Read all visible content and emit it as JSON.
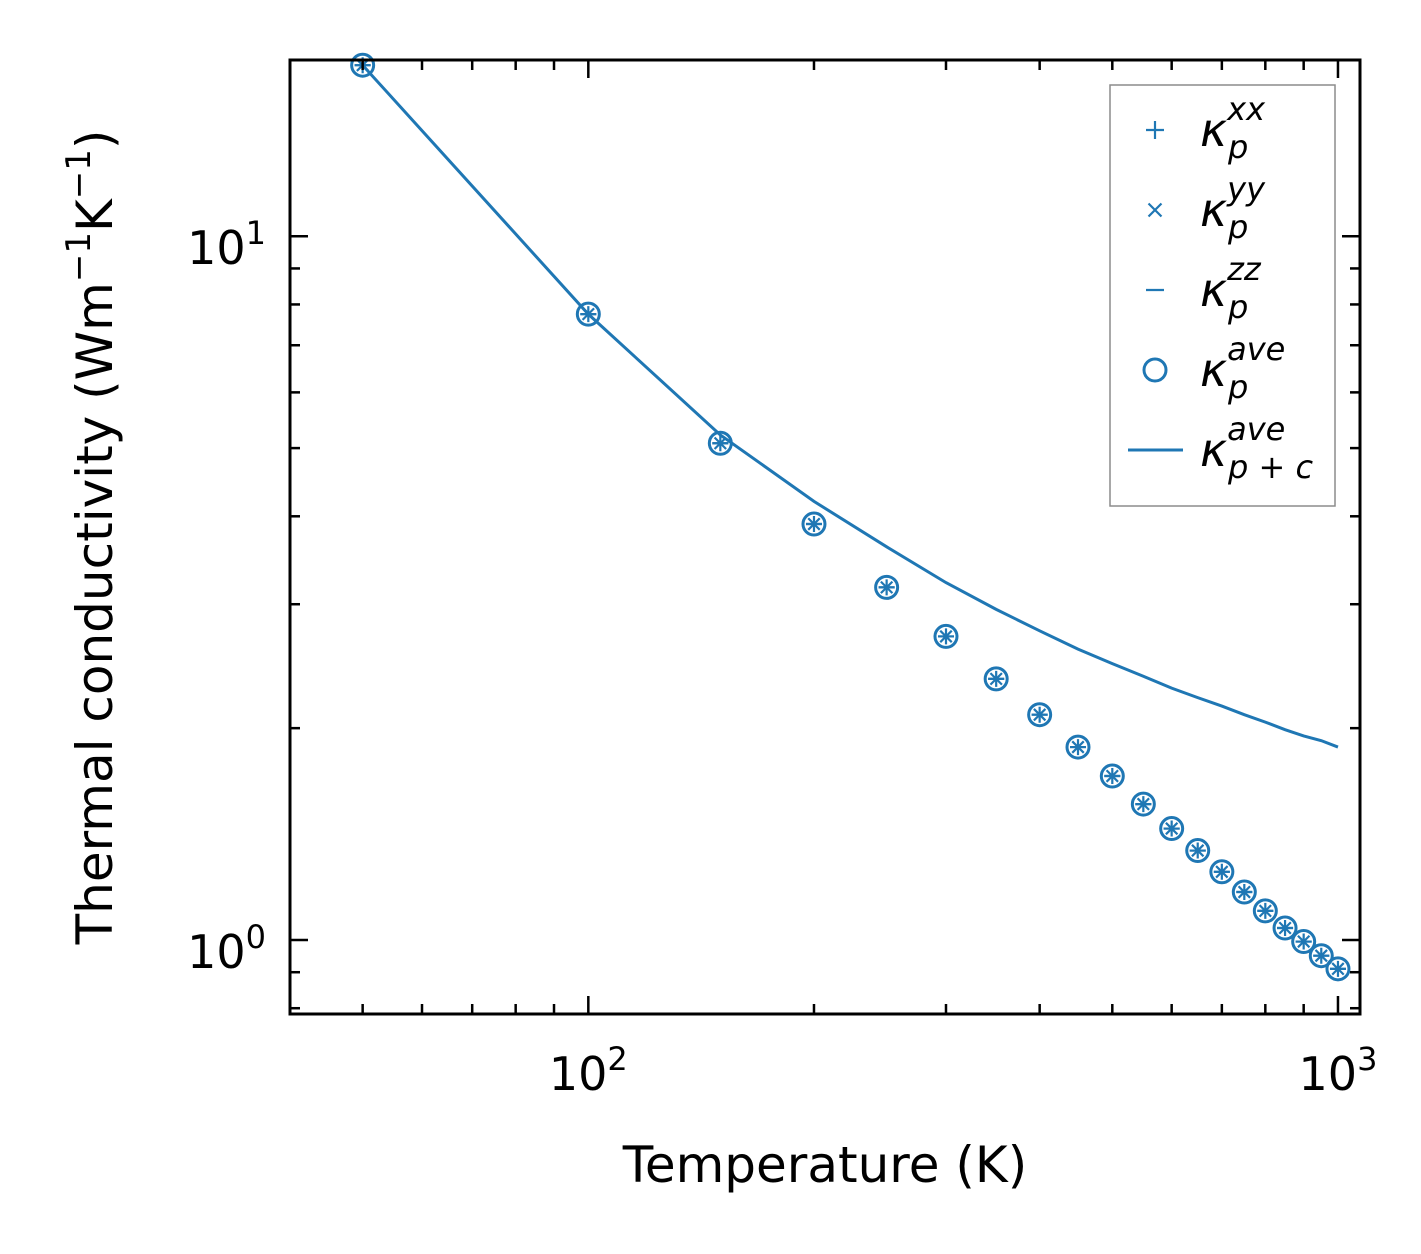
{
  "chart_data": {
    "type": "scatter",
    "x_scale": "log",
    "y_scale": "log",
    "xlabel": "Temperature (K)",
    "ylabel": {
      "prefix": "Thermal conductivity (Wm",
      "exp1": "−1",
      "mid": "K",
      "exp2": "−1",
      "suffix": ")"
    },
    "xlim": [
      40,
      1070
    ],
    "ylim": [
      0.785,
      17.8
    ],
    "x_ticks": [
      {
        "base": "10",
        "exp": "2",
        "value": 100
      },
      {
        "base": "10",
        "exp": "3",
        "value": 1000
      }
    ],
    "y_ticks": [
      {
        "base": "10",
        "exp": "0",
        "value": 1
      },
      {
        "base": "10",
        "exp": "1",
        "value": 10
      }
    ],
    "color": "#1f77b4",
    "x": [
      50,
      100,
      150,
      200,
      250,
      300,
      350,
      400,
      450,
      500,
      550,
      600,
      650,
      700,
      750,
      800,
      850,
      900,
      950,
      1000
    ],
    "series": [
      {
        "name": "κ_p^xx",
        "marker": "+",
        "values": [
          17.5,
          7.75,
          5.08,
          3.9,
          3.17,
          2.7,
          2.35,
          2.09,
          1.88,
          1.71,
          1.56,
          1.44,
          1.34,
          1.25,
          1.17,
          1.1,
          1.04,
          0.995,
          0.95,
          0.91
        ]
      },
      {
        "name": "κ_p^yy",
        "marker": "x",
        "values": [
          17.5,
          7.75,
          5.08,
          3.9,
          3.17,
          2.7,
          2.35,
          2.09,
          1.88,
          1.71,
          1.56,
          1.44,
          1.34,
          1.25,
          1.17,
          1.1,
          1.04,
          0.995,
          0.95,
          0.91
        ]
      },
      {
        "name": "κ_p^zz",
        "marker": "_",
        "values": [
          17.5,
          7.75,
          5.08,
          3.9,
          3.17,
          2.7,
          2.35,
          2.09,
          1.88,
          1.71,
          1.56,
          1.44,
          1.34,
          1.25,
          1.17,
          1.1,
          1.04,
          0.995,
          0.95,
          0.91
        ]
      },
      {
        "name": "κ_p^ave",
        "marker": "o",
        "values": [
          17.5,
          7.75,
          5.08,
          3.9,
          3.17,
          2.7,
          2.35,
          2.09,
          1.88,
          1.71,
          1.56,
          1.44,
          1.34,
          1.25,
          1.17,
          1.1,
          1.04,
          0.995,
          0.95,
          0.91
        ]
      },
      {
        "name": "κ_p+c^ave",
        "marker": "line",
        "values": [
          17.5,
          7.75,
          5.22,
          4.2,
          3.62,
          3.22,
          2.95,
          2.75,
          2.59,
          2.47,
          2.37,
          2.28,
          2.21,
          2.15,
          2.09,
          2.04,
          1.99,
          1.95,
          1.92,
          1.88
        ]
      }
    ],
    "legend": {
      "position": "top-right",
      "entries": [
        {
          "base": "κ",
          "sup": "xx",
          "sub": "p"
        },
        {
          "base": "κ",
          "sup": "yy",
          "sub": "p"
        },
        {
          "base": "κ",
          "sup": "zz",
          "sub": "p"
        },
        {
          "base": "κ",
          "sup": "ave",
          "sub": "p"
        },
        {
          "base": "κ",
          "sup": "ave",
          "sub": "p + c"
        }
      ]
    }
  }
}
